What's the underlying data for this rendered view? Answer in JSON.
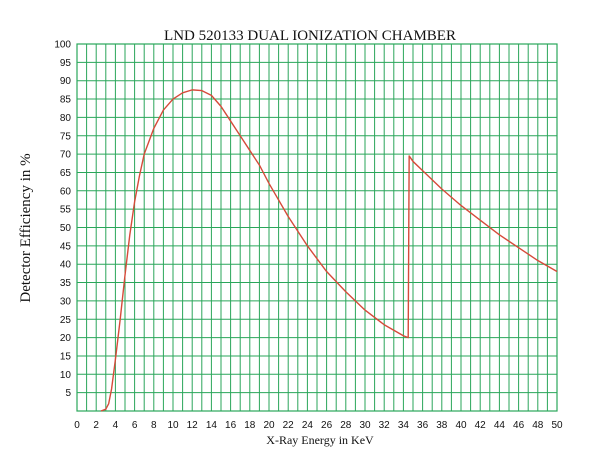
{
  "chart_data": {
    "type": "line",
    "title": "LND 520133 DUAL IONIZATION CHAMBER",
    "xlabel": "X-Ray Energy in KeV",
    "ylabel": "Detector Efficiency in %",
    "xlim": [
      0,
      50
    ],
    "ylim": [
      0,
      100
    ],
    "x_ticks": [
      "0",
      "1",
      "2",
      "3",
      "4",
      "5",
      "6",
      "7",
      "8",
      "9",
      "10",
      "11",
      "12",
      "13",
      "14",
      "15",
      "16",
      "17",
      "18",
      "19",
      "20",
      "21",
      "22",
      "23",
      "24",
      "25",
      "26",
      "27",
      "28",
      "29",
      "30",
      "31",
      "32",
      "33",
      "34",
      "35",
      "36",
      "37",
      "38",
      "39",
      "40",
      "41",
      "42",
      "43",
      "44",
      "45",
      "46",
      "47",
      "48",
      "49",
      "50"
    ],
    "x_tick_labels_shown": [
      "0",
      "2",
      "4",
      "6",
      "8",
      "10",
      "12",
      "14",
      "16",
      "18",
      "20",
      "22",
      "24",
      "26",
      "28",
      "30",
      "32",
      "34",
      "36",
      "38",
      "40",
      "42",
      "44",
      "46",
      "48",
      "50"
    ],
    "y_ticks": [
      "5",
      "10",
      "15",
      "20",
      "25",
      "30",
      "35",
      "40",
      "45",
      "50",
      "55",
      "60",
      "65",
      "70",
      "75",
      "80",
      "85",
      "90",
      "95",
      "100"
    ],
    "grid": true,
    "grid_color": "#2aa65a",
    "line_color": "#d64a3a",
    "series": [
      {
        "points": [
          [
            2.5,
            0
          ],
          [
            3.0,
            0.5
          ],
          [
            3.3,
            2
          ],
          [
            3.6,
            6
          ],
          [
            4.0,
            14
          ],
          [
            4.5,
            25
          ],
          [
            5.0,
            37
          ],
          [
            5.5,
            48
          ],
          [
            6.0,
            57
          ],
          [
            6.5,
            64
          ],
          [
            7.0,
            70
          ],
          [
            8.0,
            77
          ],
          [
            9.0,
            82
          ],
          [
            10.0,
            85
          ],
          [
            11.0,
            86.7
          ],
          [
            12.0,
            87.5
          ],
          [
            13.0,
            87.3
          ],
          [
            14.0,
            86
          ],
          [
            15.0,
            83
          ],
          [
            16.0,
            79
          ],
          [
            17.0,
            75
          ],
          [
            18.0,
            71
          ],
          [
            19.0,
            67
          ],
          [
            20.0,
            62
          ],
          [
            22.0,
            53
          ],
          [
            24.0,
            45
          ],
          [
            26.0,
            38
          ],
          [
            28.0,
            32.5
          ],
          [
            30.0,
            27.5
          ],
          [
            32.0,
            23.5
          ],
          [
            33.0,
            22
          ],
          [
            34.0,
            20.5
          ],
          [
            34.5,
            20
          ],
          [
            34.6,
            69.5
          ],
          [
            35.0,
            68
          ],
          [
            36.0,
            65.5
          ],
          [
            38.0,
            60.5
          ],
          [
            40.0,
            56
          ],
          [
            42.0,
            52
          ],
          [
            44.0,
            48
          ],
          [
            46.0,
            44.5
          ],
          [
            48.0,
            41
          ],
          [
            50.0,
            38
          ]
        ]
      }
    ]
  }
}
